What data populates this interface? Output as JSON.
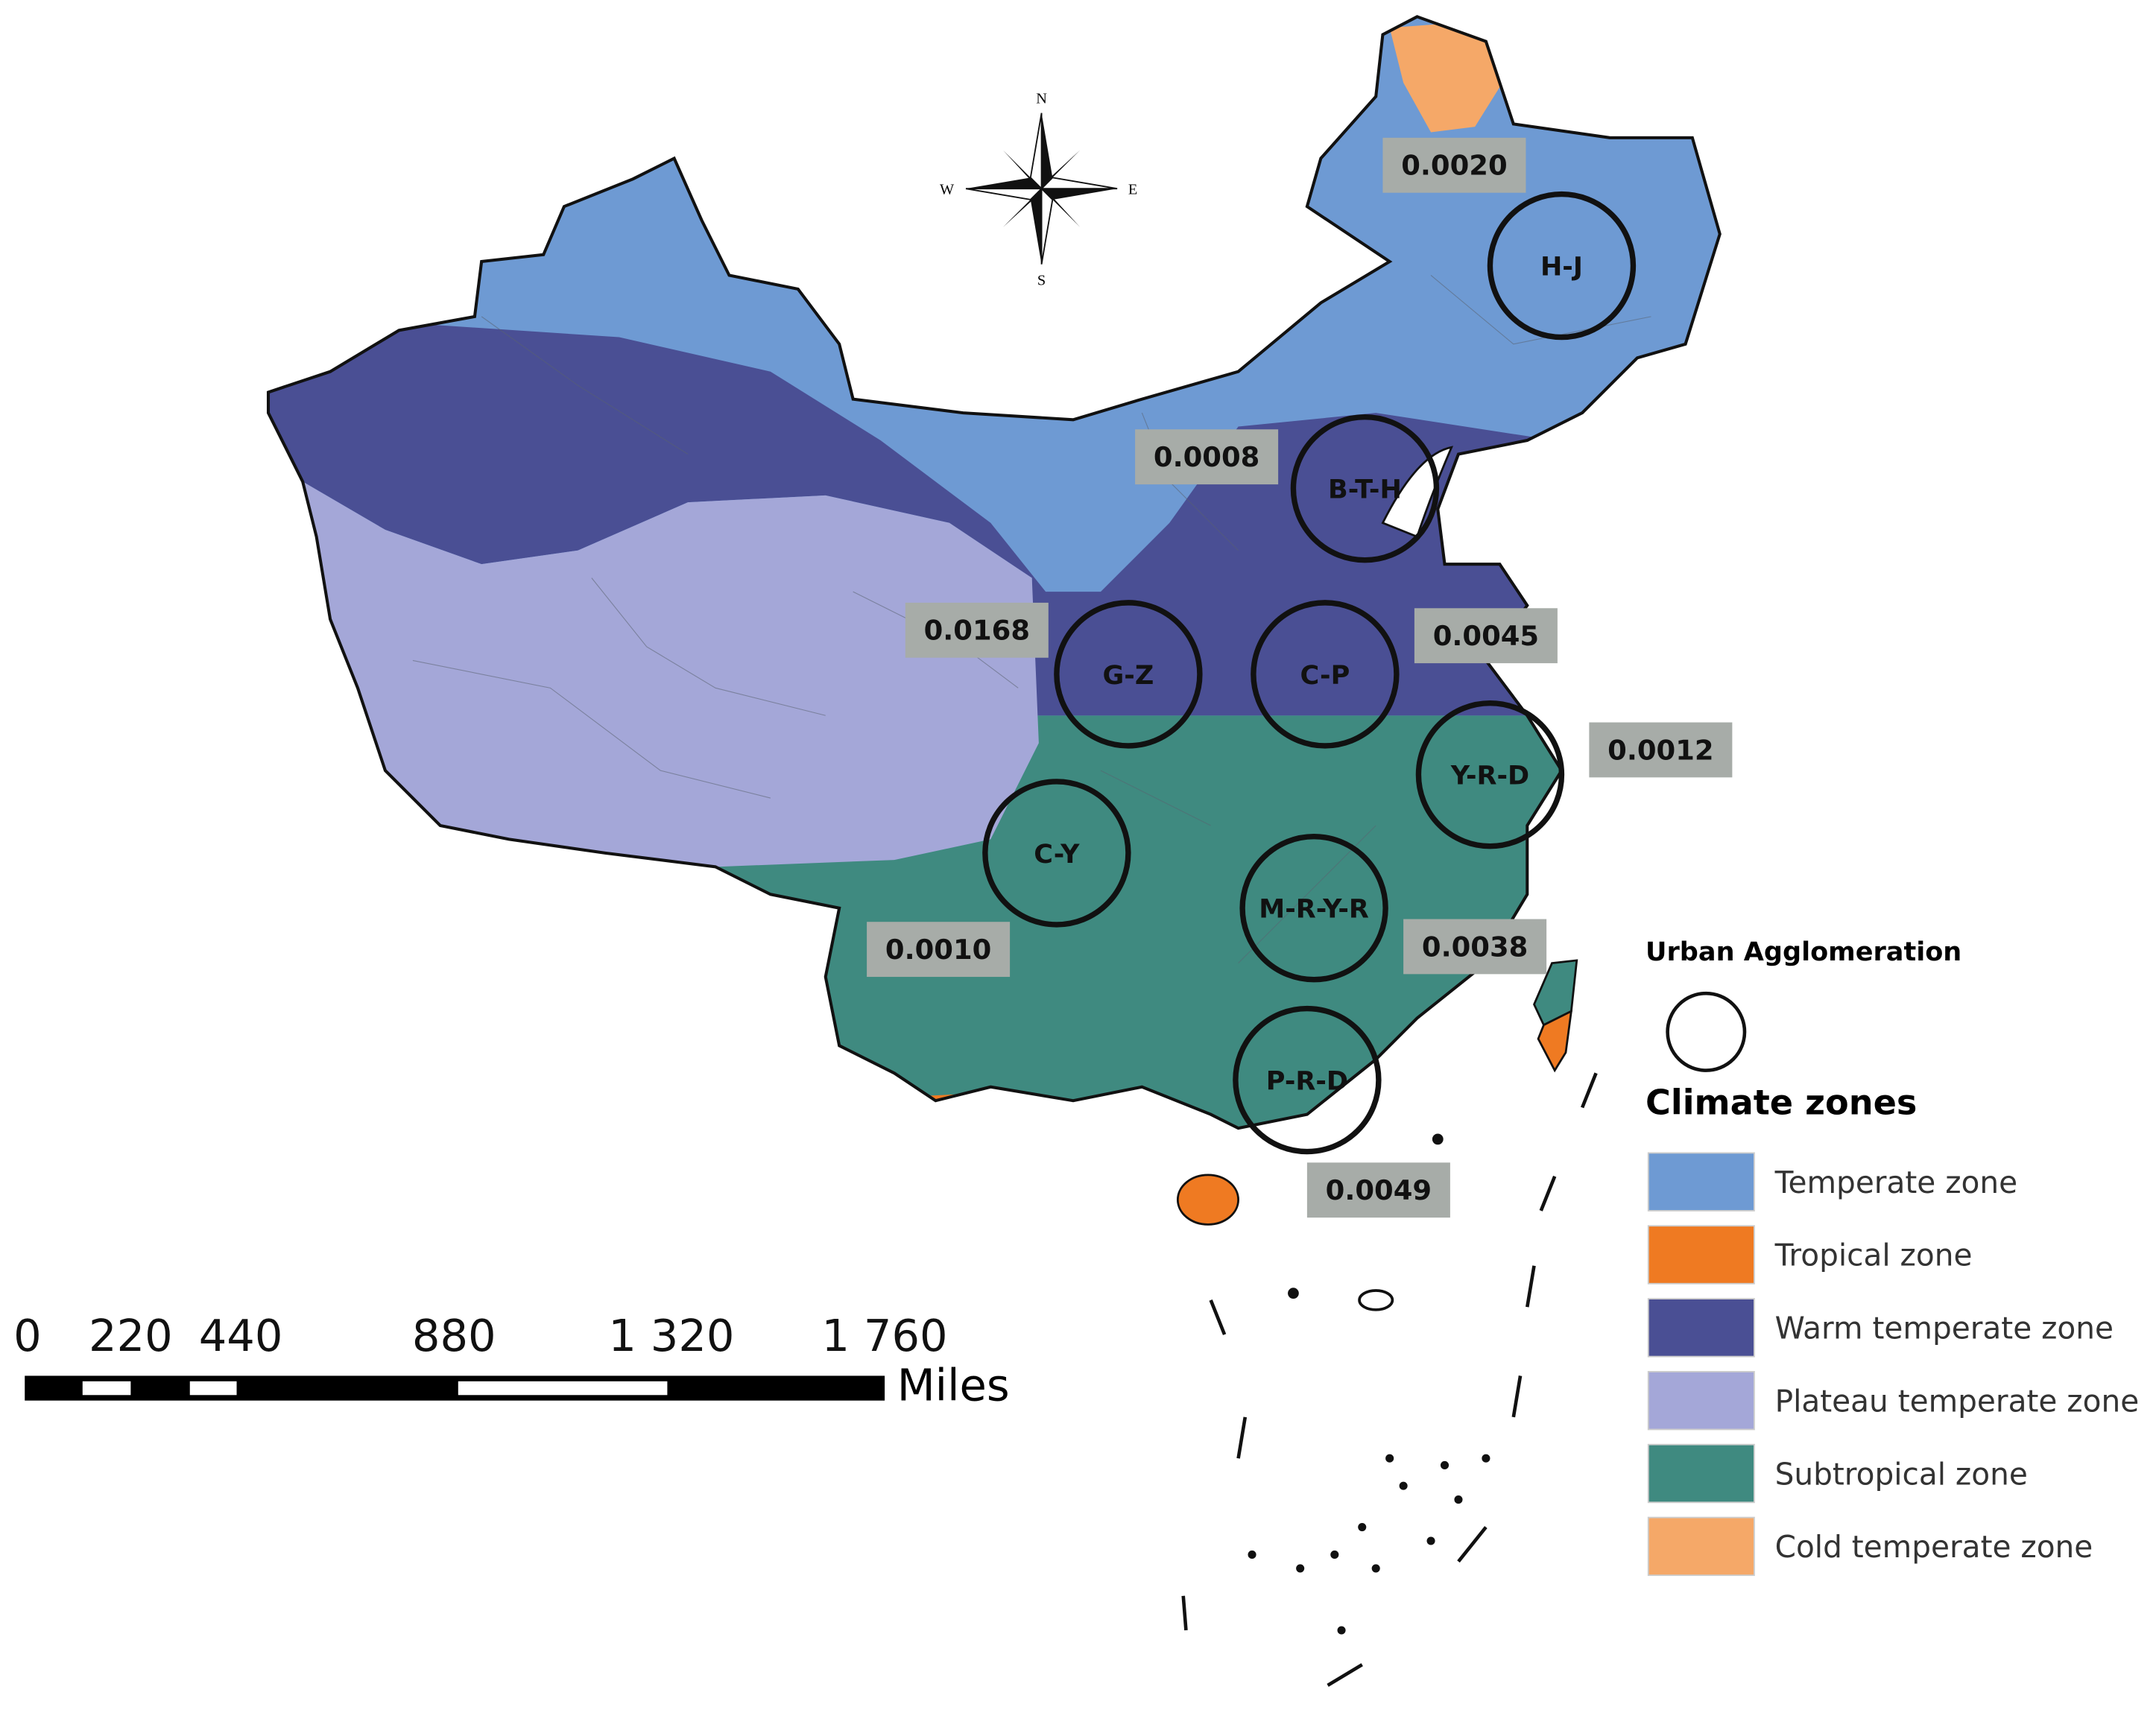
{
  "compass": {
    "north": "N",
    "south": "S",
    "east": "E",
    "west": "W"
  },
  "agglomerations": [
    {
      "label": "H-J"
    },
    {
      "label": "B-T-H"
    },
    {
      "label": "G-Z"
    },
    {
      "label": "C-P"
    },
    {
      "label": "Y-R-D"
    },
    {
      "label": "C-Y"
    },
    {
      "label": "M-R-Y-R"
    },
    {
      "label": "P-R-D"
    }
  ],
  "index_values": [
    "0.0020",
    "0.0008",
    "0.0168",
    "0.0045",
    "0.0012",
    "0.0010",
    "0.0038",
    "0.0049"
  ],
  "scale_bar": {
    "ticks": [
      "0",
      "220",
      "440",
      "880",
      "1 320",
      "1 760"
    ],
    "unit": "Miles"
  },
  "legend": {
    "circle_title": "Urban Agglomeration",
    "zones_title": "Climate zones",
    "zones": [
      {
        "label": "Temperate zone",
        "color": "#6e9ad3"
      },
      {
        "label": "Tropical zone",
        "color": "#ef7a22"
      },
      {
        "label": "Warm temperate zone",
        "color": "#4a4f94"
      },
      {
        "label": "Plateau temperate zone",
        "color": "#a4a7d8"
      },
      {
        "label": "Subtropical zone",
        "color": "#3f8a80"
      },
      {
        "label": "Cold temperate zone",
        "color": "#f5a868"
      }
    ]
  }
}
